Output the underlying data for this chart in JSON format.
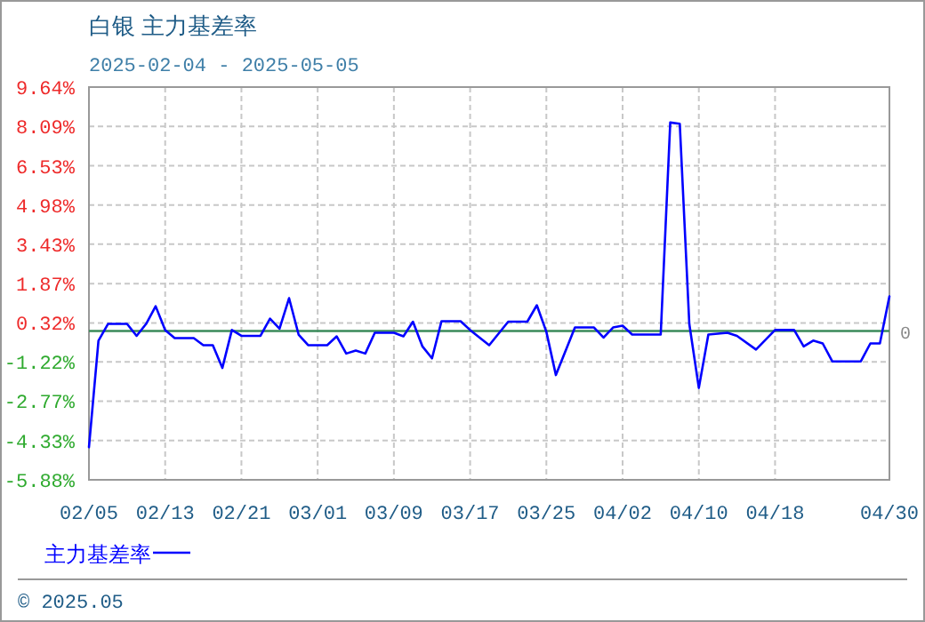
{
  "chart_data": {
    "type": "line",
    "title": "白银  主力基差率",
    "subtitle": "2025-02-04 - 2025-05-05",
    "annotations": [
      "© 2025.05"
    ],
    "x": [
      "2025-02-05",
      "2025-02-06",
      "2025-02-07",
      "2025-02-09",
      "2025-02-10",
      "2025-02-11",
      "2025-02-12",
      "2025-02-13",
      "2025-02-14",
      "2025-02-16",
      "2025-02-17",
      "2025-02-18",
      "2025-02-19",
      "2025-02-20",
      "2025-02-21",
      "2025-02-23",
      "2025-02-24",
      "2025-02-25",
      "2025-02-26",
      "2025-02-27",
      "2025-02-28",
      "2025-03-02",
      "2025-03-03",
      "2025-03-04",
      "2025-03-05",
      "2025-03-06",
      "2025-03-07",
      "2025-03-09",
      "2025-03-10",
      "2025-03-11",
      "2025-03-12",
      "2025-03-13",
      "2025-03-14",
      "2025-03-16",
      "2025-03-17",
      "2025-03-19",
      "2025-03-21",
      "2025-03-23",
      "2025-03-24",
      "2025-03-25",
      "2025-03-26",
      "2025-03-28",
      "2025-03-30",
      "2025-03-31",
      "2025-04-01",
      "2025-04-02",
      "2025-04-03",
      "2025-04-06",
      "2025-04-07",
      "2025-04-08",
      "2025-04-09",
      "2025-04-10",
      "2025-04-11",
      "2025-04-13",
      "2025-04-14",
      "2025-04-16",
      "2025-04-18",
      "2025-04-20",
      "2025-04-21",
      "2025-04-22",
      "2025-04-23",
      "2025-04-24",
      "2025-04-27",
      "2025-04-28",
      "2025-04-29",
      "2025-04-30"
    ],
    "series": [
      {
        "name": "主力基差率",
        "color": "#0000ff",
        "values": [
          -4.59,
          -0.38,
          0.28,
          0.28,
          -0.19,
          0.28,
          0.98,
          0.04,
          -0.28,
          -0.28,
          -0.56,
          -0.56,
          -1.46,
          0.04,
          -0.19,
          -0.19,
          0.49,
          0.09,
          1.3,
          -0.14,
          -0.56,
          -0.56,
          -0.21,
          -0.89,
          -0.77,
          -0.89,
          -0.07,
          -0.07,
          -0.21,
          0.37,
          -0.61,
          -1.08,
          0.39,
          0.39,
          0.04,
          -0.56,
          0.37,
          0.37,
          1.02,
          -0.03,
          -1.74,
          0.14,
          0.14,
          -0.26,
          0.14,
          0.21,
          -0.14,
          -0.14,
          8.24,
          8.19,
          0.28,
          -2.25,
          -0.14,
          -0.07,
          -0.19,
          -0.73,
          0.04,
          0.04,
          -0.61,
          -0.38,
          -0.49,
          -1.2,
          -1.2,
          -0.49,
          -0.49,
          1.37
        ]
      }
    ],
    "xlim": [
      "2025-02-05",
      "2025-04-30"
    ],
    "xticks": [
      {
        "value": "2025-02-05",
        "label": "02/05"
      },
      {
        "value": "2025-02-13",
        "label": "02/13"
      },
      {
        "value": "2025-02-21",
        "label": "02/21"
      },
      {
        "value": "2025-03-01",
        "label": "03/01"
      },
      {
        "value": "2025-03-09",
        "label": "03/09"
      },
      {
        "value": "2025-03-17",
        "label": "03/17"
      },
      {
        "value": "2025-03-25",
        "label": "03/25"
      },
      {
        "value": "2025-04-02",
        "label": "04/02"
      },
      {
        "value": "2025-04-10",
        "label": "04/10"
      },
      {
        "value": "2025-04-18",
        "label": "04/18"
      },
      {
        "value": "2025-04-30",
        "label": "04/30"
      }
    ],
    "ylim": [
      -5.88,
      9.64
    ],
    "yticks": [
      {
        "value": 9.64,
        "label": "9.64%"
      },
      {
        "value": 8.09,
        "label": "8.09%"
      },
      {
        "value": 6.53,
        "label": "6.53%"
      },
      {
        "value": 4.98,
        "label": "4.98%"
      },
      {
        "value": 3.43,
        "label": "3.43%"
      },
      {
        "value": 1.87,
        "label": "1.87%"
      },
      {
        "value": 0.32,
        "label": "0.32%"
      },
      {
        "value": -1.22,
        "label": "-1.22%"
      },
      {
        "value": -2.77,
        "label": "-2.77%"
      },
      {
        "value": -4.33,
        "label": "-4.33%"
      },
      {
        "value": -5.88,
        "label": "-5.88%"
      }
    ],
    "ref_lines": [
      {
        "axis": "y",
        "value": 0,
        "label": "0",
        "color": "#3a8a5a"
      }
    ],
    "grid": true,
    "legend": "bottom",
    "marker": "none",
    "line_style": "solid"
  }
}
